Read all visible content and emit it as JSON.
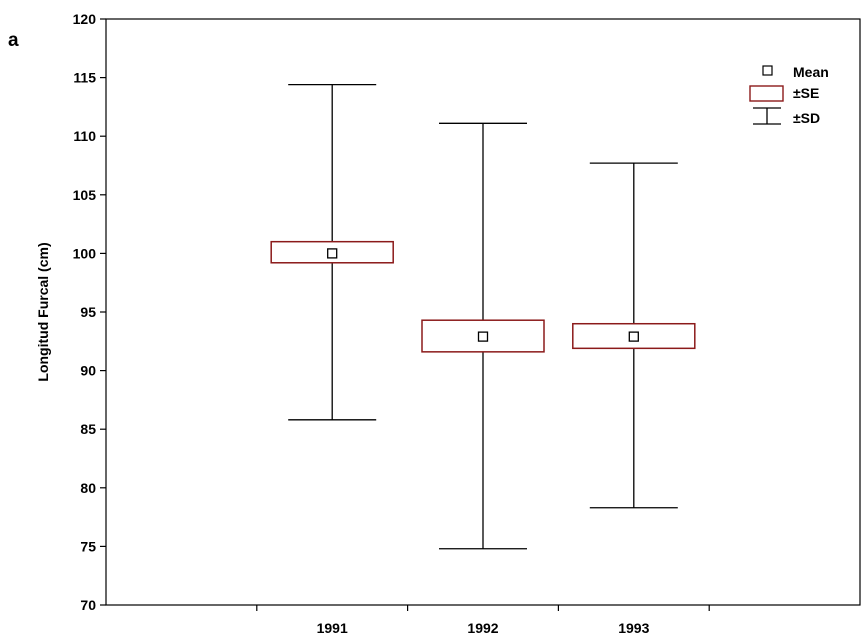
{
  "panel_label": "a",
  "colors": {
    "se_box": "#8b1a1a",
    "line": "#000000",
    "mean_marker": "#000000"
  },
  "chart_data": {
    "type": "boxplot",
    "ylabel": "Longitud Furcal (cm)",
    "xlabel": "",
    "categories": [
      "1991",
      "1992",
      "1993"
    ],
    "ylim": [
      70,
      120
    ],
    "yticks": [
      70,
      75,
      80,
      85,
      90,
      95,
      100,
      105,
      110,
      115,
      120
    ],
    "grid": false,
    "legend_position": "top-right",
    "legend": {
      "mean": "Mean",
      "se": "±SE",
      "sd": "±SD"
    },
    "series": [
      {
        "category": "1991",
        "mean": 100.0,
        "se_low": 99.2,
        "se_high": 101.0,
        "sd_low": 85.8,
        "sd_high": 114.4
      },
      {
        "category": "1992",
        "mean": 92.9,
        "se_low": 91.6,
        "se_high": 94.3,
        "sd_low": 74.8,
        "sd_high": 111.1
      },
      {
        "category": "1993",
        "mean": 92.9,
        "se_low": 91.9,
        "se_high": 94.0,
        "sd_low": 78.3,
        "sd_high": 107.7
      }
    ]
  }
}
